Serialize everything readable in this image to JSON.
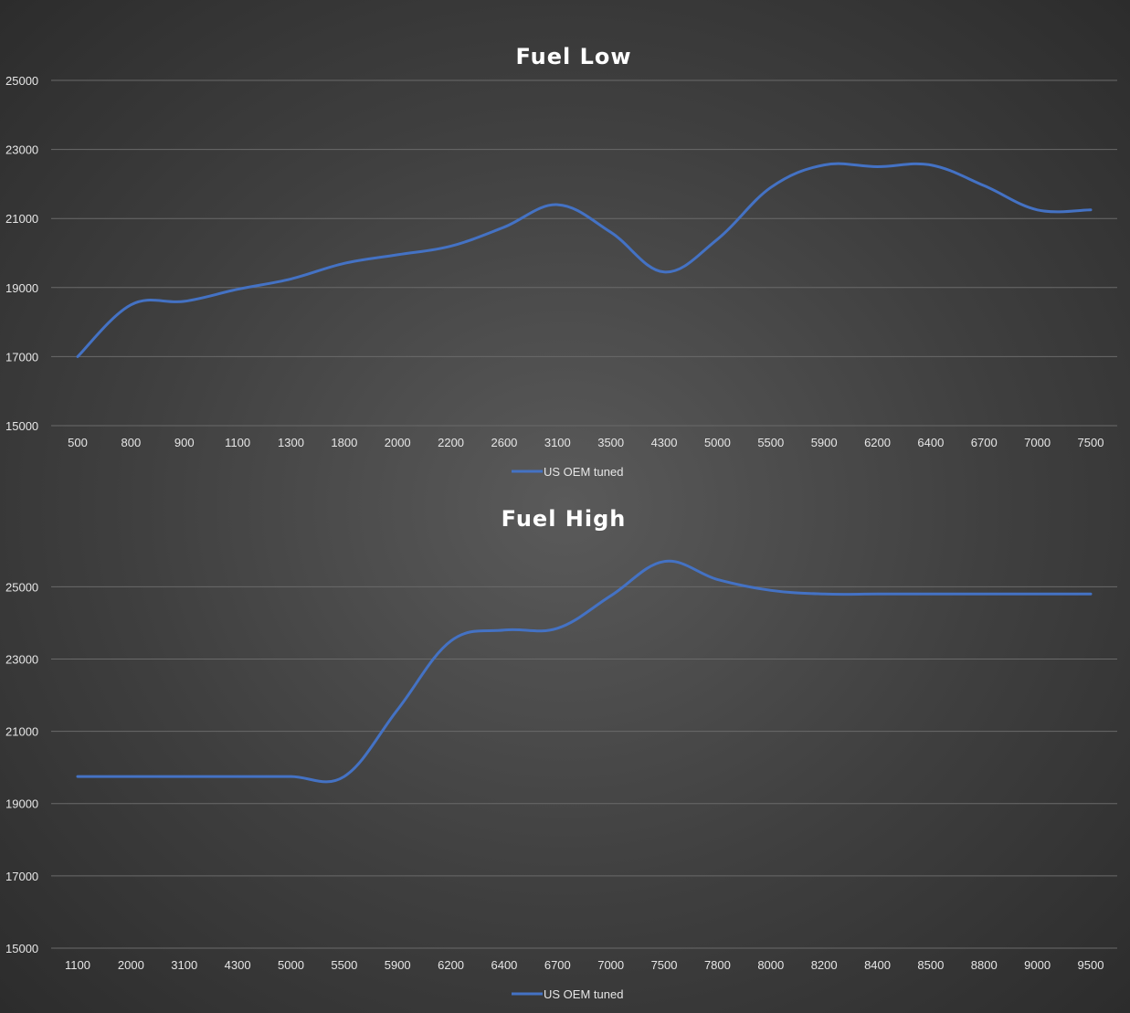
{
  "chart_data": [
    {
      "type": "line",
      "title": "Fuel Low",
      "xlabel": "",
      "ylabel": "",
      "ylim": [
        15000,
        25000
      ],
      "yticks": [
        15000,
        17000,
        19000,
        21000,
        23000,
        25000
      ],
      "categories": [
        "500",
        "800",
        "900",
        "1100",
        "1300",
        "1800",
        "2000",
        "2200",
        "2600",
        "3100",
        "3500",
        "4300",
        "5000",
        "5500",
        "5900",
        "6200",
        "6400",
        "6700",
        "7000",
        "7500"
      ],
      "series": [
        {
          "name": "US OEM tuned",
          "color": "#4472c4",
          "values": [
            17000,
            18500,
            18600,
            18950,
            19250,
            19700,
            19950,
            20200,
            20750,
            21400,
            20600,
            19450,
            20400,
            21900,
            22550,
            22500,
            22550,
            21950,
            21250,
            21250
          ]
        }
      ],
      "grid": true,
      "legend": "bottom-center"
    },
    {
      "type": "line",
      "title": "Fuel High",
      "xlabel": "",
      "ylabel": "",
      "ylim": [
        15000,
        26500
      ],
      "yticks": [
        15000,
        17000,
        19000,
        21000,
        23000,
        25000
      ],
      "categories": [
        "1100",
        "2000",
        "3100",
        "4300",
        "5000",
        "5500",
        "5900",
        "6200",
        "6400",
        "6700",
        "7000",
        "7500",
        "7800",
        "8000",
        "8200",
        "8400",
        "8500",
        "8800",
        "9000",
        "9500"
      ],
      "series": [
        {
          "name": "US OEM tuned",
          "color": "#4472c4",
          "values": [
            19750,
            19750,
            19750,
            19750,
            19750,
            19750,
            21600,
            23500,
            23800,
            23850,
            24750,
            25700,
            25200,
            24900,
            24800,
            24800,
            24800,
            24800,
            24800,
            24800
          ]
        }
      ],
      "grid": true,
      "legend": "bottom-center"
    }
  ]
}
